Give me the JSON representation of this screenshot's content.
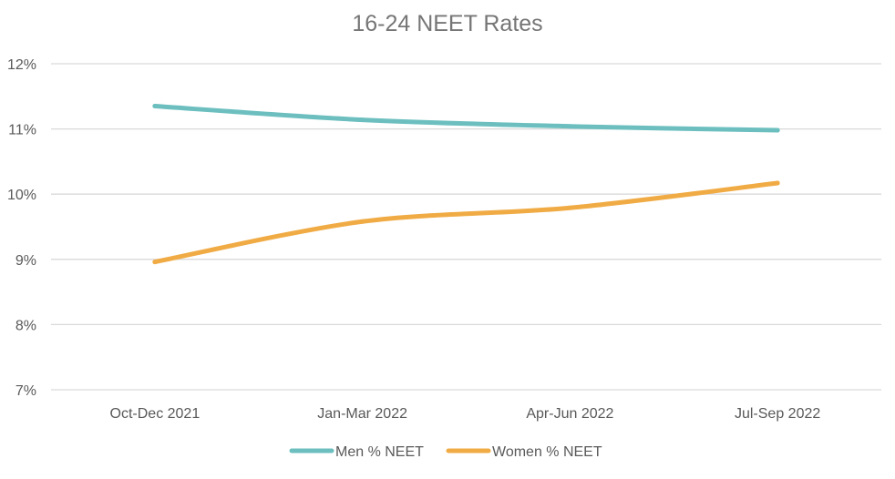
{
  "chart_data": {
    "type": "line",
    "title": "16-24 NEET Rates",
    "categories": [
      "Oct-Dec 2021",
      "Jan-Mar 2022",
      "Apr-Jun 2022",
      "Jul-Sep 2022"
    ],
    "series": [
      {
        "name": "Men % NEET",
        "color": "#6dbfbf",
        "values": [
          11.35,
          11.14,
          11.04,
          10.98
        ]
      },
      {
        "name": "Women % NEET",
        "color": "#f0ab45",
        "values": [
          8.96,
          9.58,
          9.79,
          10.17
        ]
      }
    ],
    "ylim": [
      7,
      12
    ],
    "yticks": [
      "7%",
      "8%",
      "9%",
      "10%",
      "11%",
      "12%"
    ],
    "grid": true,
    "legend": "bottom"
  }
}
